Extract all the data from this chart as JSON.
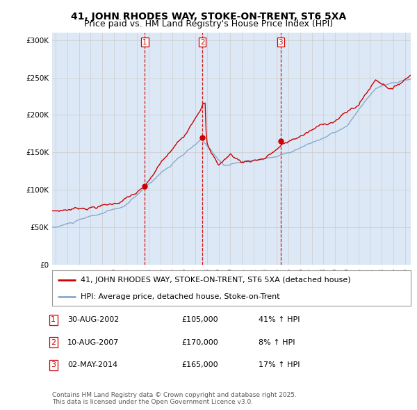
{
  "title": "41, JOHN RHODES WAY, STOKE-ON-TRENT, ST6 5XA",
  "subtitle": "Price paid vs. HM Land Registry's House Price Index (HPI)",
  "red_label": "41, JOHN RHODES WAY, STOKE-ON-TRENT, ST6 5XA (detached house)",
  "blue_label": "HPI: Average price, detached house, Stoke-on-Trent",
  "sale_markers": [
    {
      "num": 1,
      "date_str": "30-AUG-2002",
      "price": 105000,
      "pct": "41%",
      "dir": "↑",
      "x_year": 2002.66
    },
    {
      "num": 2,
      "date_str": "10-AUG-2007",
      "price": 170000,
      "pct": "8%",
      "dir": "↑",
      "x_year": 2007.61
    },
    {
      "num": 3,
      "date_str": "02-MAY-2014",
      "price": 165000,
      "pct": "17%",
      "dir": "↑",
      "x_year": 2014.33
    }
  ],
  "red_color": "#cc0000",
  "blue_color": "#88aacc",
  "marker_color": "#cc0000",
  "grid_color": "#cccccc",
  "background_color": "#ffffff",
  "plot_bg_color": "#dce8f5",
  "ylim": [
    0,
    310000
  ],
  "xlim_start": 1994.7,
  "xlim_end": 2025.5,
  "footer": "Contains HM Land Registry data © Crown copyright and database right 2025.\nThis data is licensed under the Open Government Licence v3.0.",
  "title_fontsize": 10,
  "subtitle_fontsize": 9,
  "tick_fontsize": 7.5,
  "legend_fontsize": 8,
  "table_fontsize": 8,
  "footer_fontsize": 6.5
}
